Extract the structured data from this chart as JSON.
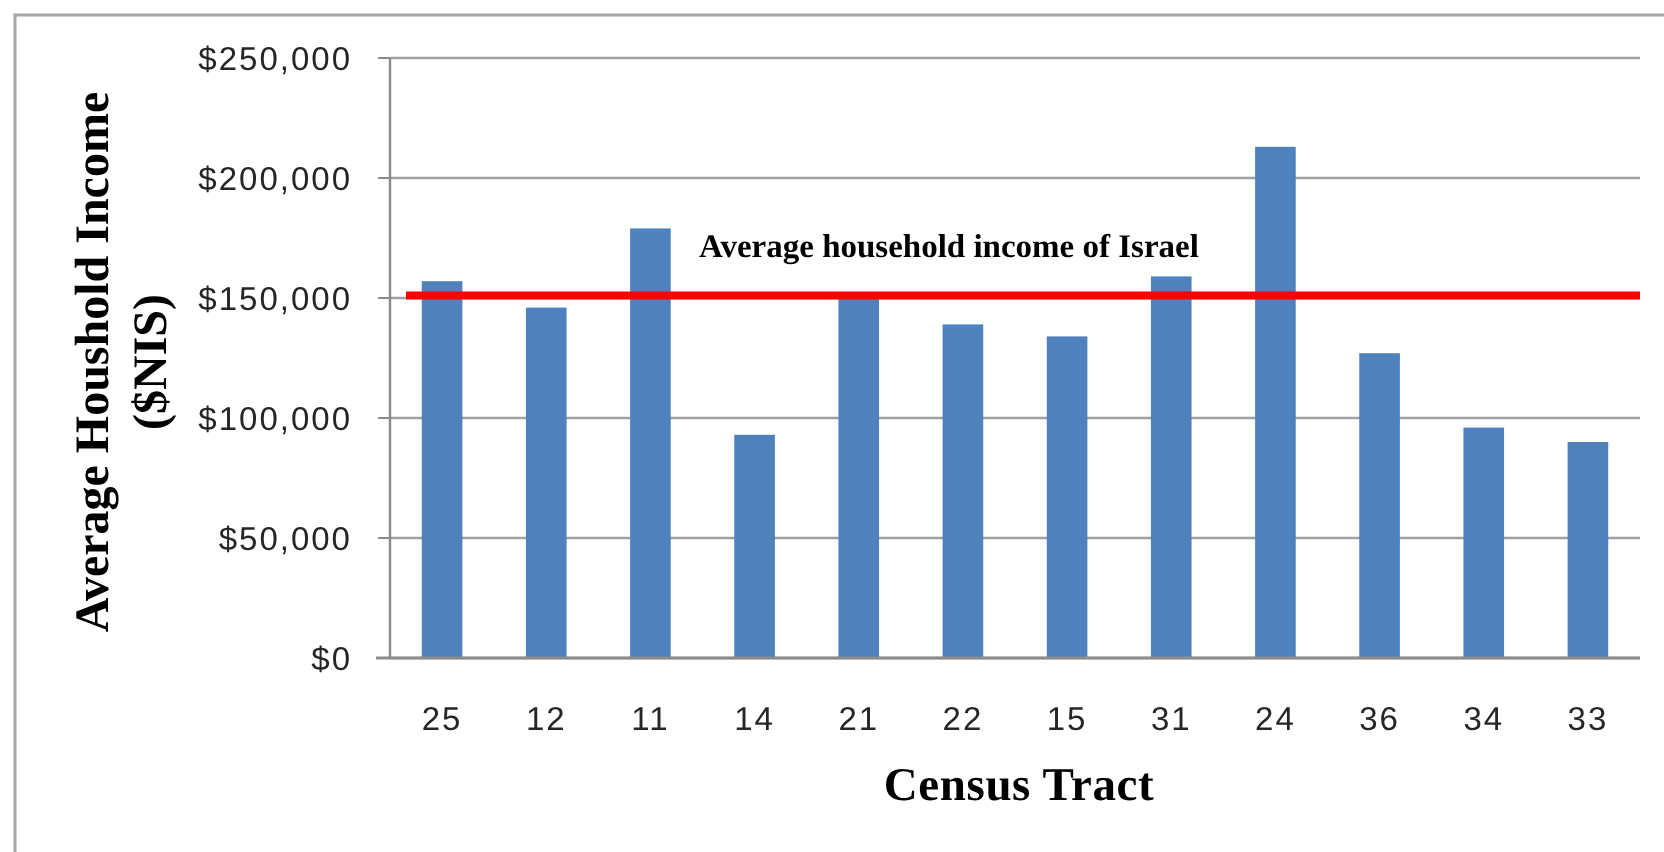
{
  "chart_data": {
    "type": "bar",
    "xlabel": "Census Tract",
    "ylabel": "Average Houshold Income\n($NIS)",
    "categories": [
      "25",
      "12",
      "11",
      "14",
      "21",
      "22",
      "15",
      "31",
      "24",
      "36",
      "34",
      "33"
    ],
    "values": [
      157000,
      146000,
      179000,
      93000,
      151000,
      139000,
      134000,
      159000,
      213000,
      127000,
      96000,
      90000
    ],
    "color": "#4f81bd",
    "ylim": [
      0,
      250000
    ],
    "yticks": [
      {
        "value": 0,
        "label": "$0"
      },
      {
        "value": 50000,
        "label": "$50,000"
      },
      {
        "value": 100000,
        "label": "$100,000"
      },
      {
        "value": 150000,
        "label": "$150,000"
      },
      {
        "value": 200000,
        "label": "$200,000"
      },
      {
        "value": 250000,
        "label": "$250,000"
      }
    ],
    "grid": "y",
    "ref_lines": [
      {
        "axis": "y",
        "value": 151000,
        "label": "Average household income of Israel",
        "color": "#ff0000"
      }
    ]
  }
}
